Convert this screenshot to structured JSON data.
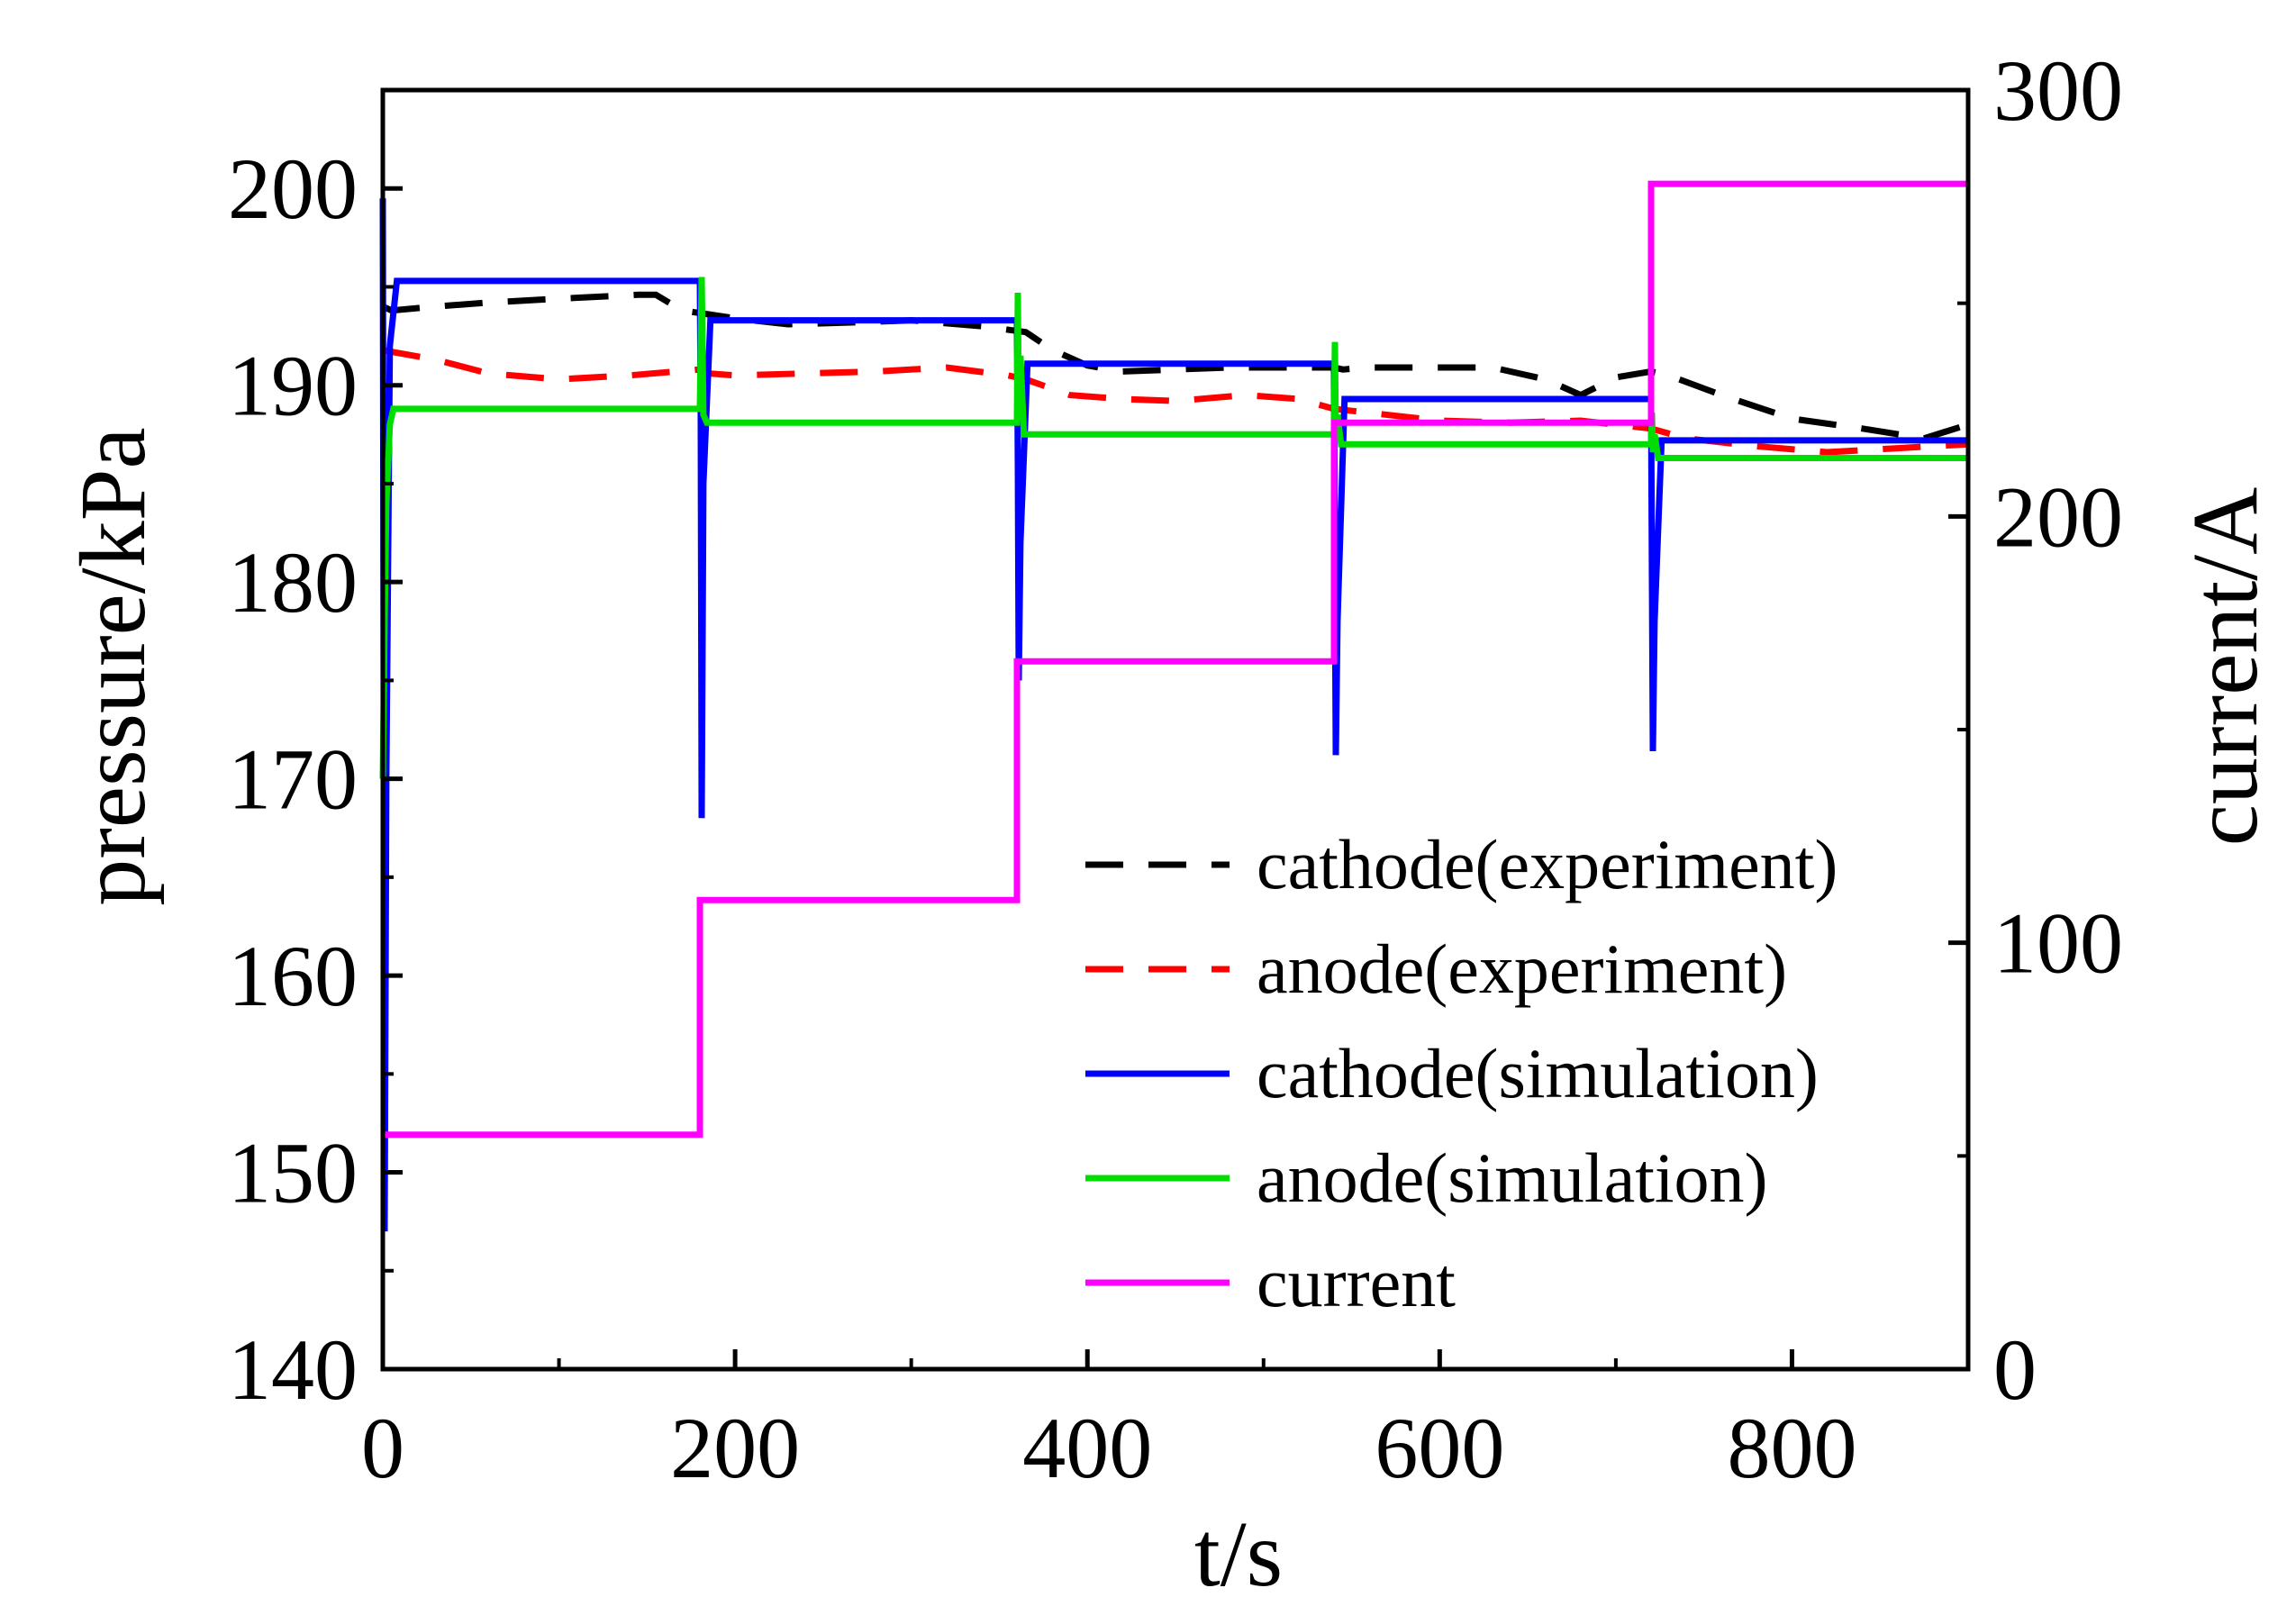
{
  "chart_data": {
    "type": "line",
    "title": "",
    "xlabel": "t/s",
    "ylabel_left": "pressure/kPa",
    "ylabel_right": "current/A",
    "xlim": [
      0,
      900
    ],
    "ylim_left": [
      140,
      205
    ],
    "ylim_right": [
      0,
      300
    ],
    "x_ticks": [
      0,
      200,
      400,
      600,
      800
    ],
    "y_left_ticks": [
      140,
      150,
      160,
      170,
      180,
      190,
      200
    ],
    "y_right_ticks": [
      0,
      100,
      200,
      300
    ],
    "legend_position": "center-right",
    "series": [
      {
        "name": "cathode(experiment)",
        "axis": "left",
        "color": "#000000",
        "style": "dashed",
        "x": [
          0,
          5,
          30,
          60,
          100,
          145,
          155,
          170,
          185,
          200,
          230,
          270,
          300,
          340,
          365,
          380,
          400,
          420,
          450,
          480,
          510,
          540,
          545,
          560,
          600,
          630,
          660,
          680,
          700,
          720,
          730,
          760,
          800,
          840,
          875,
          900
        ],
        "y": [
          194,
          193.8,
          194,
          194.2,
          194.4,
          194.6,
          194.6,
          193.8,
          193.6,
          193.4,
          193.1,
          193.2,
          193.3,
          193.0,
          192.7,
          191.8,
          191.0,
          190.7,
          190.8,
          190.9,
          190.9,
          190.9,
          190.8,
          190.9,
          190.9,
          190.9,
          190.3,
          189.5,
          190.4,
          190.7,
          190.5,
          189.5,
          188.3,
          187.8,
          187.3,
          188.0
        ]
      },
      {
        "name": "anode(experiment)",
        "axis": "left",
        "color": "#ff0000",
        "style": "dashed",
        "x": [
          0,
          5,
          30,
          60,
          100,
          140,
          180,
          185,
          200,
          240,
          280,
          320,
          355,
          365,
          390,
          420,
          450,
          490,
          520,
          540,
          560,
          600,
          640,
          680,
          720,
          740,
          780,
          820,
          860,
          900
        ],
        "y": [
          191.8,
          191.7,
          191.3,
          190.6,
          190.3,
          190.5,
          190.8,
          190.6,
          190.5,
          190.6,
          190.7,
          190.9,
          190.5,
          190.3,
          189.5,
          189.3,
          189.2,
          189.5,
          189.3,
          188.8,
          188.6,
          188.2,
          188.1,
          188.2,
          187.8,
          187.3,
          186.9,
          186.6,
          186.8,
          187.0
        ]
      },
      {
        "name": "cathode(simulation)",
        "axis": "left",
        "color": "#0000ff",
        "style": "solid",
        "x": [
          0,
          1,
          2,
          4,
          8,
          180,
          180.5,
          181,
          182,
          186,
          360,
          360.5,
          361,
          362,
          366,
          540,
          540.5,
          541,
          542,
          546,
          720,
          720.5,
          721,
          722,
          726,
          900
        ],
        "y": [
          199.5,
          147,
          170,
          192,
          195.3,
          195.3,
          188,
          168,
          185,
          193.3,
          193.3,
          186,
          175,
          182,
          191.1,
          191.1,
          180,
          171.2,
          178,
          189.3,
          189.3,
          180,
          171.4,
          178,
          187.2,
          187.2
        ]
      },
      {
        "name": "anode(simulation)",
        "axis": "left",
        "color": "#00dd00",
        "style": "solid",
        "x": [
          0,
          1,
          2,
          4,
          6,
          180,
          181,
          182,
          184,
          360,
          360.5,
          361,
          362,
          364,
          540,
          540.5,
          541,
          542,
          544,
          720,
          720.5,
          721,
          722,
          724,
          900
        ],
        "y": [
          170,
          178,
          184,
          188,
          188.8,
          188.8,
          195.5,
          188.5,
          188.1,
          188.1,
          194.7,
          188.2,
          191.5,
          187.5,
          187.5,
          192.2,
          187.3,
          188.5,
          187.0,
          187.0,
          188.6,
          186.6,
          187.5,
          186.3,
          186.3
        ]
      },
      {
        "name": "current",
        "axis": "right",
        "color": "#ff00ff",
        "style": "solid",
        "x": [
          0,
          180,
          180,
          360,
          360,
          540,
          540,
          720,
          720,
          900
        ],
        "y": [
          55,
          55,
          110,
          110,
          166,
          166,
          222,
          222,
          278,
          278
        ]
      }
    ]
  }
}
